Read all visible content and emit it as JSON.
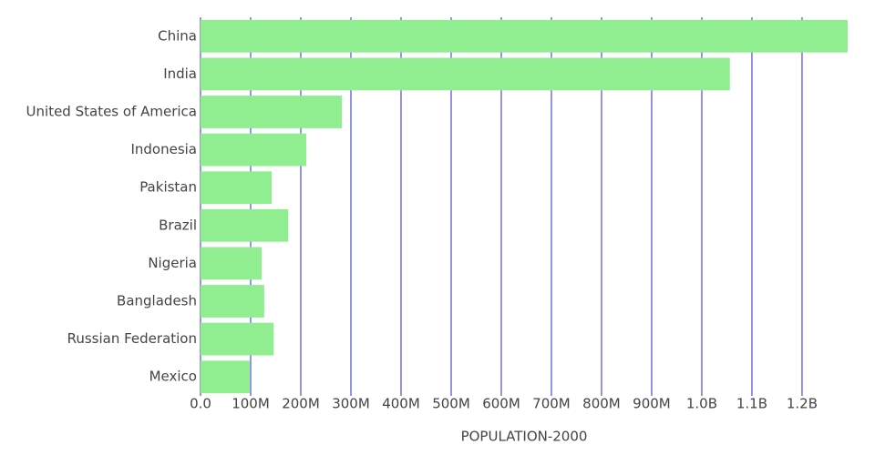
{
  "chart_data": {
    "type": "hbar",
    "x_label": "POPULATION-2000",
    "categories": [
      "China",
      "India",
      "United States of America",
      "Indonesia",
      "Pakistan",
      "Brazil",
      "Nigeria",
      "Bangladesh",
      "Russian Federation",
      "Mexico"
    ],
    "values": [
      1291000000,
      1056000000,
      282000000,
      211000000,
      142000000,
      175000000,
      122000000,
      127000000,
      146000000,
      98000000
    ],
    "color": "#90ee90",
    "grid_color": "#7070e0",
    "grid": true,
    "xlim": [
      0,
      1291000000
    ],
    "xticks": [
      {
        "value": 0,
        "label": "0.0"
      },
      {
        "value": 100000000,
        "label": "100M"
      },
      {
        "value": 200000000,
        "label": "200M"
      },
      {
        "value": 300000000,
        "label": "300M"
      },
      {
        "value": 400000000,
        "label": "400M"
      },
      {
        "value": 500000000,
        "label": "500M"
      },
      {
        "value": 600000000,
        "label": "600M"
      },
      {
        "value": 700000000,
        "label": "700M"
      },
      {
        "value": 800000000,
        "label": "800M"
      },
      {
        "value": 900000000,
        "label": "900M"
      },
      {
        "value": 1000000000,
        "label": "1.0B"
      },
      {
        "value": 1100000000,
        "label": "1.1B"
      },
      {
        "value": 1200000000,
        "label": "1.2B"
      }
    ]
  }
}
